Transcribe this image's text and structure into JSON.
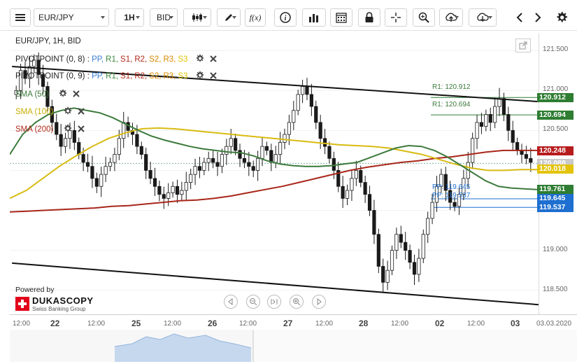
{
  "toolbar": {
    "symbol": "EUR/JPY",
    "timeframe": "1H",
    "price_side": "BID",
    "icons": [
      "menu-icon",
      "candles-icon",
      "pencil-icon",
      "fx-icon",
      "info-icon",
      "bars-icon",
      "calendar-icon",
      "lock-icon",
      "crosshair-icon",
      "magnifier-icon",
      "upload-icon",
      "download-icon",
      "left-arrow-icon",
      "right-arrow-icon",
      "gear-icon"
    ],
    "fx_label": "f(x)"
  },
  "chart_title": "EUR/JPY, 1H, BID",
  "indicators": [
    {
      "label": "PIVOTPOINT (0, 8)",
      "color": "#222"
    },
    {
      "label": "PIVOTPOINT (0, 9)",
      "color": "#222"
    },
    {
      "label": "SMA (50)",
      "color": "#3c7a3c"
    },
    {
      "label": "SMA (100)",
      "color": "#d4b800"
    },
    {
      "label": "SMA (200)",
      "color": "#b02a1a"
    }
  ],
  "pivot_keys": [
    {
      "text": "PP,",
      "color": "#3a7fd0"
    },
    {
      "text": "R1,",
      "color": "#3c8a3c"
    },
    {
      "text": "S1,",
      "color": "#b02a1a"
    },
    {
      "text": "R2,",
      "color": "#b02a1a"
    },
    {
      "text": "S2,",
      "color": "#d98a00"
    },
    {
      "text": "R3,",
      "color": "#d98a00"
    },
    {
      "text": "S3",
      "color": "#e0c400"
    }
  ],
  "chart_labels": {
    "r1_a": "R1: 120.912",
    "r1_b": "R1: 120.694",
    "pp_a": "PP: 119.645",
    "pp_b": "PP: 119.537"
  },
  "price_tags": [
    {
      "value": "120.912",
      "color": "#2e7d32"
    },
    {
      "value": "120.694",
      "color": "#2e7d32"
    },
    {
      "value": "120.248",
      "color": "#b71c1c"
    },
    {
      "value": "120.088",
      "color": "#c9c9c9"
    },
    {
      "value": "120.018",
      "color": "#e3c30a"
    },
    {
      "value": "119.761",
      "color": "#2e7d32"
    },
    {
      "value": "119.645",
      "color": "#1e6fd0"
    },
    {
      "value": "119.537",
      "color": "#1e6fd0"
    }
  ],
  "branding": {
    "powered": "Powered by",
    "name": "DUKASCOPY",
    "sub": "Swiss Banking Group"
  },
  "chart_data": {
    "type": "candlestick",
    "title": "EUR/JPY, 1H, BID",
    "y_ticks": [
      "121.500",
      "121.000",
      "120.500",
      "120.000",
      "119.500",
      "119.000",
      "118.500"
    ],
    "x_ticks": [
      {
        "label": "12:00",
        "big": false
      },
      {
        "label": "22",
        "big": true
      },
      {
        "label": "12:00",
        "big": false
      },
      {
        "label": "25",
        "big": true
      },
      {
        "label": "12:00",
        "big": false
      },
      {
        "label": "26",
        "big": true
      },
      {
        "label": "12:00",
        "big": false
      },
      {
        "label": "27",
        "big": true
      },
      {
        "label": "12:00",
        "big": false
      },
      {
        "label": "28",
        "big": true
      },
      {
        "label": "12:00",
        "big": false
      },
      {
        "label": "02",
        "big": true
      },
      {
        "label": "12:00",
        "big": false
      },
      {
        "label": "03",
        "big": true
      },
      {
        "label": "03.03.2020",
        "big": false
      }
    ],
    "ylim": [
      118.2,
      121.72
    ],
    "closes": [
      121.0,
      121.25,
      121.15,
      121.3,
      121.38,
      121.2,
      121.05,
      120.8,
      120.6,
      120.45,
      120.3,
      120.4,
      120.5,
      120.35,
      120.2,
      120.1,
      120.05,
      119.9,
      119.8,
      119.95,
      120.05,
      120.1,
      120.2,
      120.4,
      120.6,
      120.5,
      120.45,
      120.3,
      120.2,
      120.0,
      119.9,
      119.8,
      119.7,
      119.65,
      119.72,
      119.8,
      119.7,
      119.75,
      119.85,
      119.95,
      120.05,
      120.0,
      120.1,
      120.15,
      120.1,
      120.05,
      120.2,
      120.3,
      120.4,
      120.25,
      120.15,
      120.1,
      120.05,
      120.0,
      120.15,
      120.3,
      120.25,
      120.1,
      120.2,
      120.35,
      120.45,
      120.6,
      120.75,
      120.95,
      121.05,
      120.95,
      120.8,
      120.6,
      120.4,
      120.3,
      120.15,
      120.0,
      119.8,
      119.65,
      119.75,
      119.9,
      120.0,
      119.85,
      119.7,
      119.5,
      119.2,
      118.8,
      118.6,
      118.75,
      119.0,
      119.2,
      119.1,
      119.0,
      118.85,
      118.7,
      118.9,
      119.2,
      119.4,
      119.6,
      119.8,
      119.95,
      119.75,
      119.6,
      119.55,
      119.7,
      119.9,
      120.1,
      120.4,
      120.6,
      120.55,
      120.7,
      120.6,
      120.8,
      120.9,
      120.7,
      120.5,
      120.35,
      120.25,
      120.2,
      120.15,
      120.1
    ],
    "sma50": [
      120.2,
      120.45,
      120.6,
      120.7,
      120.75,
      120.78,
      120.75,
      120.72,
      120.66,
      120.58,
      120.5,
      120.43,
      120.38,
      120.34,
      120.3,
      120.27,
      120.25,
      120.23,
      120.22,
      120.18,
      120.12,
      120.08,
      120.06,
      120.05,
      120.05,
      120.06,
      120.08,
      120.1,
      120.16,
      120.22,
      120.28,
      120.31,
      120.3,
      120.25,
      120.17,
      120.07,
      119.97,
      119.87,
      119.8,
      119.78,
      119.77,
      119.76
    ],
    "sma100": [
      119.65,
      119.75,
      119.9,
      120.05,
      120.18,
      120.3,
      120.4,
      120.47,
      120.52,
      120.53,
      120.52,
      120.5,
      120.48,
      120.46,
      120.44,
      120.42,
      120.4,
      120.38,
      120.36,
      120.34,
      120.32,
      120.31,
      120.3,
      120.28,
      120.24,
      120.2,
      120.14,
      120.08,
      120.03,
      120.0,
      120.0,
      120.01,
      120.01
    ],
    "sma200": [
      119.48,
      119.49,
      119.5,
      119.51,
      119.52,
      119.53,
      119.55,
      119.56,
      119.58,
      119.6,
      119.62,
      119.63,
      119.65,
      119.68,
      119.72,
      119.76,
      119.8,
      119.85,
      119.9,
      119.95,
      120.0,
      120.04,
      120.07,
      120.1,
      120.12,
      120.15,
      120.17,
      120.2,
      120.23,
      120.25,
      120.25,
      120.25
    ],
    "channel": {
      "upper": [
        {
          "bar": 0,
          "price": 121.3
        },
        {
          "bar": 116,
          "price": 120.86
        }
      ],
      "lower": [
        {
          "bar": 0,
          "price": 118.84
        },
        {
          "bar": 116,
          "price": 118.32
        }
      ]
    },
    "pivot_levels": [
      {
        "label": "R1",
        "value": 120.912
      },
      {
        "label": "R1",
        "value": 120.694
      },
      {
        "label": "PP",
        "value": 119.645
      },
      {
        "label": "PP",
        "value": 119.537
      }
    ],
    "last_price": 120.088,
    "series": [
      {
        "name": "SMA (50)",
        "color": "#3c7a3c"
      },
      {
        "name": "SMA (100)",
        "color": "#d4b800"
      },
      {
        "name": "SMA (200)",
        "color": "#b02a1a"
      }
    ]
  }
}
